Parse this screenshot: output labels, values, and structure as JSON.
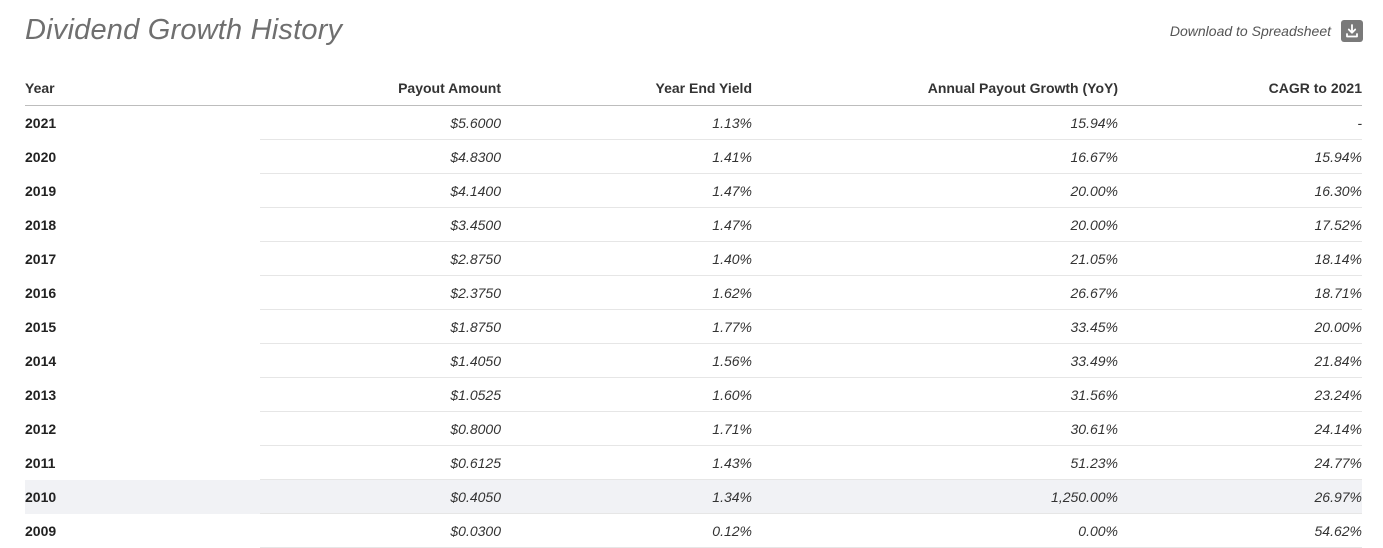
{
  "header": {
    "title": "Dividend Growth History",
    "download_label": "Download to Spreadsheet",
    "download_icon": "download-icon"
  },
  "table": {
    "columns": [
      "Year",
      "Payout Amount",
      "Year End Yield",
      "Annual Payout Growth (YoY)",
      "CAGR to 2021"
    ],
    "highlighted_year": "2010",
    "rows": [
      {
        "year": "2021",
        "payout": "$5.6000",
        "yield": "1.13%",
        "growth": "15.94%",
        "cagr": "-"
      },
      {
        "year": "2020",
        "payout": "$4.8300",
        "yield": "1.41%",
        "growth": "16.67%",
        "cagr": "15.94%"
      },
      {
        "year": "2019",
        "payout": "$4.1400",
        "yield": "1.47%",
        "growth": "20.00%",
        "cagr": "16.30%"
      },
      {
        "year": "2018",
        "payout": "$3.4500",
        "yield": "1.47%",
        "growth": "20.00%",
        "cagr": "17.52%"
      },
      {
        "year": "2017",
        "payout": "$2.8750",
        "yield": "1.40%",
        "growth": "21.05%",
        "cagr": "18.14%"
      },
      {
        "year": "2016",
        "payout": "$2.3750",
        "yield": "1.62%",
        "growth": "26.67%",
        "cagr": "18.71%"
      },
      {
        "year": "2015",
        "payout": "$1.8750",
        "yield": "1.77%",
        "growth": "33.45%",
        "cagr": "20.00%"
      },
      {
        "year": "2014",
        "payout": "$1.4050",
        "yield": "1.56%",
        "growth": "33.49%",
        "cagr": "21.84%"
      },
      {
        "year": "2013",
        "payout": "$1.0525",
        "yield": "1.60%",
        "growth": "31.56%",
        "cagr": "23.24%"
      },
      {
        "year": "2012",
        "payout": "$0.8000",
        "yield": "1.71%",
        "growth": "30.61%",
        "cagr": "24.14%"
      },
      {
        "year": "2011",
        "payout": "$0.6125",
        "yield": "1.43%",
        "growth": "51.23%",
        "cagr": "24.77%"
      },
      {
        "year": "2010",
        "payout": "$0.4050",
        "yield": "1.34%",
        "growth": "1,250.00%",
        "cagr": "26.97%"
      },
      {
        "year": "2009",
        "payout": "$0.0300",
        "yield": "0.12%",
        "growth": "0.00%",
        "cagr": "54.62%"
      }
    ]
  }
}
